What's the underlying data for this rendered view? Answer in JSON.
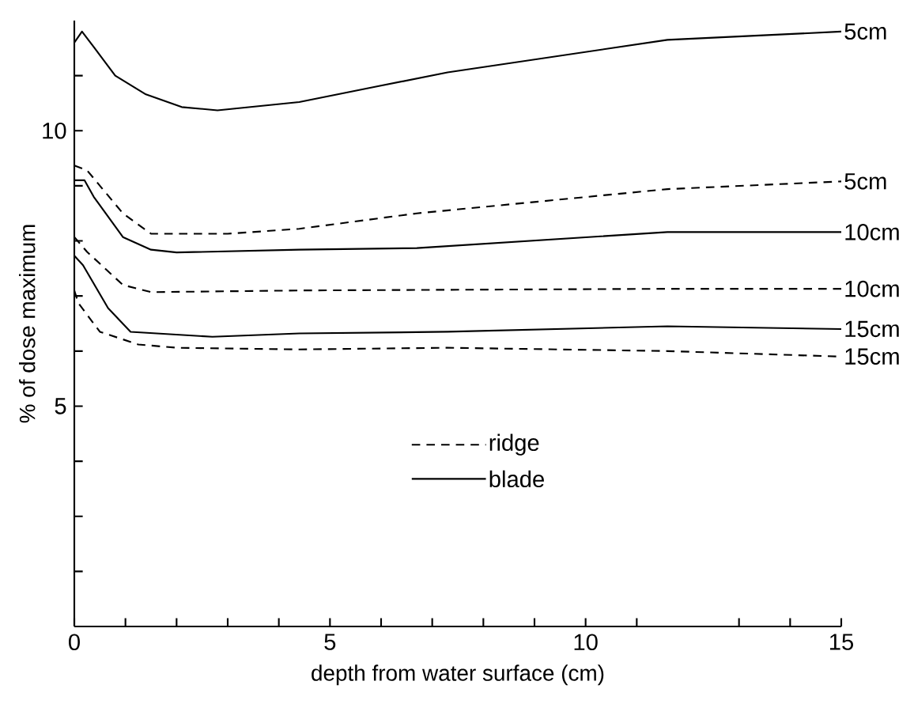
{
  "chart_data": {
    "type": "line",
    "xlabel": "depth from water surface (cm)",
    "ylabel": "% of dose maximum",
    "xlim": [
      0,
      15
    ],
    "ylim": [
      1,
      12
    ],
    "xticks": [
      0,
      {
        "value": 1,
        "label": null
      },
      {
        "value": 2,
        "label": null
      },
      {
        "value": 3,
        "label": null
      },
      {
        "value": 4,
        "label": null
      },
      5,
      {
        "value": 6,
        "label": null
      },
      {
        "value": 7,
        "label": null
      },
      {
        "value": 8,
        "label": null
      },
      {
        "value": 9,
        "label": null
      },
      10,
      {
        "value": 11,
        "label": null
      },
      {
        "value": 13,
        "label": null
      },
      {
        "value": 14,
        "label": null
      },
      15
    ],
    "yticks": [
      {
        "value": 2,
        "label": null
      },
      {
        "value": 3,
        "label": null
      },
      {
        "value": 4,
        "label": null
      },
      5,
      {
        "value": 6,
        "label": null
      },
      {
        "value": 7,
        "label": null
      },
      {
        "value": 8,
        "label": null
      },
      {
        "value": 9,
        "label": null
      },
      10,
      {
        "value": 11,
        "label": null
      }
    ],
    "grid": false,
    "legend": "center",
    "marker": "none",
    "annotations": [
      "ridge",
      "blade"
    ],
    "series": [
      {
        "name": "5cm",
        "color": "#000000",
        "line_style": "dashed",
        "x": [
          0,
          0.25,
          0.95,
          1.5,
          3.0,
          4.4,
          6.7,
          11.6,
          15
        ],
        "values": [
          9.37,
          9.28,
          8.5,
          8.13,
          8.13,
          8.22,
          8.5,
          8.94,
          9.08
        ]
      },
      {
        "name": "5cm",
        "color": "#000000",
        "line_style": "solid",
        "x": [
          0,
          0.15,
          0.38,
          0.8,
          1.4,
          2.1,
          2.8,
          4.4,
          5.9,
          7.3,
          11.6,
          15
        ],
        "values": [
          11.6,
          11.8,
          11.52,
          11.0,
          10.66,
          10.43,
          10.37,
          10.52,
          10.8,
          11.06,
          11.65,
          11.8
        ]
      },
      {
        "name": "10cm",
        "color": "#000000",
        "line_style": "dashed",
        "x": [
          0,
          0.25,
          0.95,
          1.5,
          4.4,
          11.6,
          15
        ],
        "values": [
          8.07,
          7.8,
          7.2,
          7.07,
          7.1,
          7.13,
          7.13
        ]
      },
      {
        "name": "10cm",
        "color": "#000000",
        "line_style": "solid",
        "x": [
          0,
          0.2,
          0.38,
          0.95,
          1.5,
          2.0,
          4.4,
          6.7,
          11.6,
          15
        ],
        "values": [
          9.1,
          9.1,
          8.8,
          8.07,
          7.84,
          7.79,
          7.84,
          7.87,
          8.16,
          8.16
        ]
      },
      {
        "name": "15cm",
        "color": "#000000",
        "line_style": "dashed",
        "x": [
          0,
          0.08,
          0.5,
          1.25,
          2.0,
          4.4,
          7.3,
          11.6,
          15
        ],
        "values": [
          7.1,
          6.87,
          6.35,
          6.12,
          6.06,
          6.03,
          6.06,
          6.0,
          5.9
        ]
      },
      {
        "name": "15cm",
        "color": "#000000",
        "line_style": "solid",
        "x": [
          0,
          0.17,
          0.66,
          1.1,
          2.7,
          4.4,
          7.3,
          11.6,
          15
        ],
        "values": [
          7.73,
          7.56,
          6.78,
          6.35,
          6.26,
          6.32,
          6.35,
          6.45,
          6.4
        ]
      }
    ]
  }
}
